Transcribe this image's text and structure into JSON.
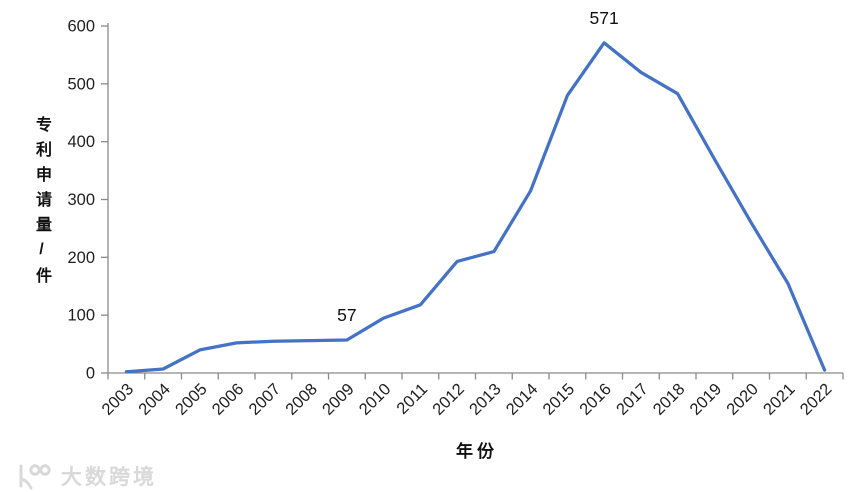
{
  "chart_data": {
    "type": "line",
    "title": "",
    "categories": [
      "2003",
      "2004",
      "2005",
      "2006",
      "2007",
      "2008",
      "2009",
      "2010",
      "2011",
      "2012",
      "2013",
      "2014",
      "2015",
      "2016",
      "2017",
      "2018",
      "2019",
      "2020",
      "2021",
      "2022"
    ],
    "values": [
      2,
      7,
      40,
      52,
      55,
      56,
      57,
      95,
      118,
      193,
      210,
      315,
      480,
      571,
      520,
      483,
      370,
      260,
      155,
      5
    ],
    "xlabel": "年份",
    "ylabel": "专利申请量/件",
    "ylim": [
      0,
      600
    ],
    "ytick_step": 100,
    "yticks": [
      0,
      100,
      200,
      300,
      400,
      500,
      600
    ],
    "grid": false,
    "legend": false,
    "annotations": [
      {
        "category": "2009",
        "text": "57"
      },
      {
        "category": "2016",
        "text": "571"
      }
    ],
    "colors": {
      "line": "#4472C4",
      "axis": "#8a8a8a",
      "tick_label": "#1f1f1f",
      "data_label": "#111111"
    }
  },
  "watermark": {
    "icon": "brand-logo-icon",
    "text": "大数跨境",
    "color": "#d9d9d9"
  }
}
